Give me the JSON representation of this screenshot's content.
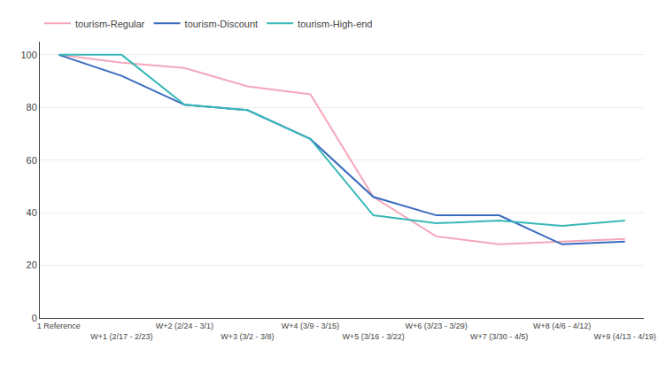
{
  "chart_data": {
    "type": "line",
    "categories": [
      "1 Reference",
      "W+1 (2/17 - 2/23)",
      "W+2 (2/24 - 3/1)",
      "W+3 (3/2 - 3/8)",
      "W+4 (3/9 - 3/15)",
      "W+5 (3/16 - 3/22)",
      "W+6 (3/23 - 3/29)",
      "W+7 (3/30 - 4/5)",
      "W+8 (4/6 - 4/12)",
      "W+9 (4/13 - 4/19)"
    ],
    "series": [
      {
        "name": "tourism-Regular",
        "color": "#f4a7b9",
        "values": [
          100,
          97,
          95,
          88,
          85,
          46,
          31,
          28,
          29,
          30
        ]
      },
      {
        "name": "tourism-Discount",
        "color": "#3a6abf",
        "values": [
          100,
          92,
          81,
          79,
          68,
          46,
          39,
          39,
          28,
          29
        ]
      },
      {
        "name": "tourism-High-end",
        "color": "#38b8b8",
        "values": [
          100,
          100,
          81,
          79,
          68,
          39,
          36,
          37,
          35,
          37
        ]
      }
    ],
    "ylim": [
      0,
      105
    ],
    "yticks": [
      0,
      20,
      40,
      60,
      80,
      100
    ],
    "grid": true,
    "legend": "top-left"
  }
}
